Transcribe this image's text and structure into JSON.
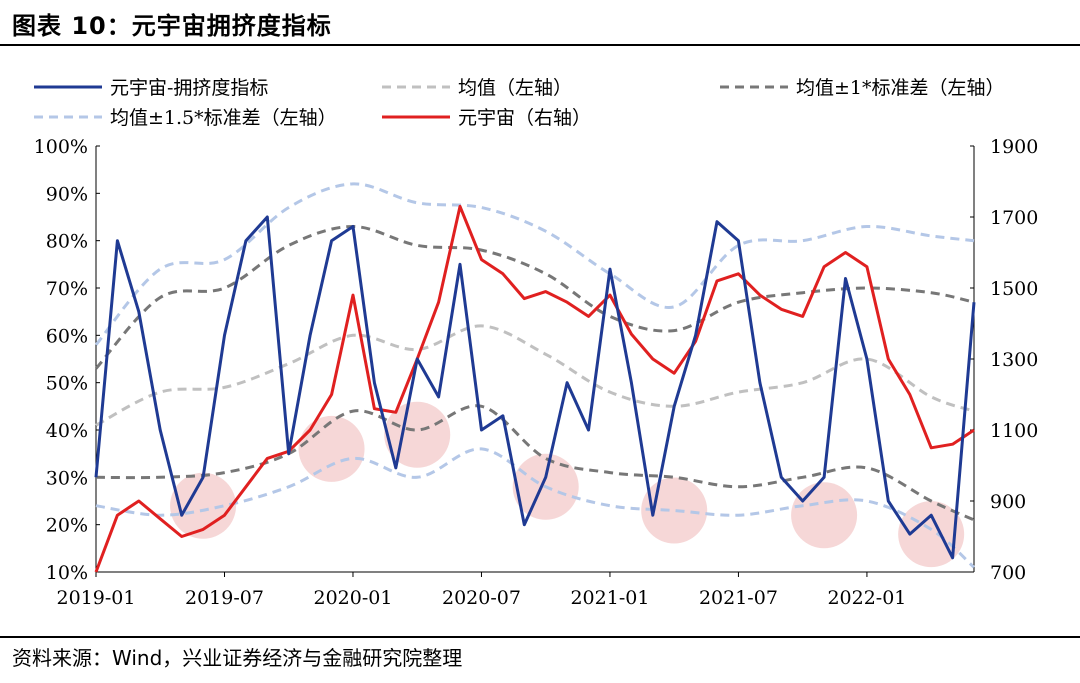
{
  "title": "图表 10：元宇宙拥挤度指标",
  "source": "资料来源：Wind，兴业证券经济与金融研究院整理",
  "chart_data": {
    "type": "line",
    "title": "",
    "xlabel": "",
    "ylabel_left": "",
    "ylabel_right": "",
    "x_ticks": [
      "2019-01",
      "2019-07",
      "2020-01",
      "2020-07",
      "2021-01",
      "2021-07",
      "2022-01"
    ],
    "x_range": [
      "2019-01",
      "2022-06"
    ],
    "y_left_ticks": [
      "10%",
      "20%",
      "30%",
      "40%",
      "50%",
      "60%",
      "70%",
      "80%",
      "90%",
      "100%"
    ],
    "y_left_range": [
      10,
      100
    ],
    "y_right_ticks": [
      "700",
      "900",
      "1100",
      "1300",
      "1500",
      "1700",
      "1900"
    ],
    "y_right_range": [
      700,
      1900
    ],
    "legend_placement": "top",
    "series": [
      {
        "name": "元宇宙-拥挤度指标",
        "axis": "left",
        "color": "#1f3a93",
        "style": "solid",
        "x": [
          "2019-01",
          "2019-02",
          "2019-03",
          "2019-04",
          "2019-05",
          "2019-06",
          "2019-07",
          "2019-08",
          "2019-09",
          "2019-10",
          "2019-11",
          "2019-12",
          "2020-01",
          "2020-02",
          "2020-03",
          "2020-04",
          "2020-05",
          "2020-06",
          "2020-07",
          "2020-08",
          "2020-09",
          "2020-10",
          "2020-11",
          "2020-12",
          "2021-01",
          "2021-02",
          "2021-03",
          "2021-04",
          "2021-05",
          "2021-06",
          "2021-07",
          "2021-08",
          "2021-09",
          "2021-10",
          "2021-11",
          "2021-12",
          "2022-01",
          "2022-02",
          "2022-03",
          "2022-04",
          "2022-05",
          "2022-06"
        ],
        "values": [
          30,
          80,
          65,
          40,
          22,
          30,
          60,
          80,
          85,
          35,
          60,
          80,
          83,
          50,
          32,
          55,
          47,
          75,
          40,
          43,
          20,
          30,
          50,
          40,
          74,
          50,
          22,
          45,
          60,
          84,
          80,
          50,
          30,
          25,
          30,
          72,
          55,
          25,
          18,
          22,
          13,
          67
        ]
      },
      {
        "name": "均值（左轴）",
        "axis": "left",
        "color": "#c0c0c0",
        "style": "dashed",
        "x": [
          "2019-01",
          "2019-04",
          "2019-07",
          "2019-10",
          "2020-01",
          "2020-04",
          "2020-07",
          "2020-10",
          "2021-01",
          "2021-04",
          "2021-07",
          "2021-10",
          "2022-01",
          "2022-04",
          "2022-06"
        ],
        "values": [
          41,
          48,
          49,
          54,
          60,
          57,
          62,
          56,
          48,
          45,
          48,
          50,
          55,
          47,
          44
        ]
      },
      {
        "name": "均值±1*标准差（左轴）",
        "axis": "left",
        "color": "#777777",
        "style": "dashed",
        "x": [
          "2019-01",
          "2019-04",
          "2019-07",
          "2019-10",
          "2020-01",
          "2020-04",
          "2020-07",
          "2020-10",
          "2021-01",
          "2021-04",
          "2021-07",
          "2021-10",
          "2022-01",
          "2022-04",
          "2022-06"
        ],
        "values": [
          53,
          68,
          70,
          79,
          83,
          79,
          78,
          73,
          64,
          61,
          67,
          69,
          70,
          69,
          67
        ],
        "lower": [
          30,
          30,
          31,
          35,
          44,
          40,
          45,
          34,
          31,
          30,
          28,
          30,
          32,
          25,
          21
        ]
      },
      {
        "name": "均值±1.5*标准差（左轴）",
        "axis": "left",
        "color": "#b4c7e7",
        "style": "dashed",
        "x": [
          "2019-01",
          "2019-04",
          "2019-07",
          "2019-10",
          "2020-01",
          "2020-04",
          "2020-07",
          "2020-10",
          "2021-01",
          "2021-04",
          "2021-07",
          "2021-10",
          "2022-01",
          "2022-04",
          "2022-06"
        ],
        "values": [
          58,
          74,
          76,
          87,
          92,
          88,
          87,
          82,
          73,
          66,
          79,
          80,
          83,
          81,
          80
        ],
        "lower": [
          24,
          22,
          24,
          28,
          34,
          30,
          36,
          28,
          24,
          23,
          22,
          24,
          25,
          19,
          11
        ]
      },
      {
        "name": "元宇宙（右轴）",
        "axis": "right",
        "color": "#e02020",
        "style": "solid",
        "x": [
          "2019-01",
          "2019-02",
          "2019-03",
          "2019-04",
          "2019-05",
          "2019-06",
          "2019-07",
          "2019-08",
          "2019-09",
          "2019-10",
          "2019-11",
          "2019-12",
          "2020-01",
          "2020-02",
          "2020-03",
          "2020-04",
          "2020-05",
          "2020-06",
          "2020-07",
          "2020-08",
          "2020-09",
          "2020-10",
          "2020-11",
          "2020-12",
          "2021-01",
          "2021-02",
          "2021-03",
          "2021-04",
          "2021-05",
          "2021-06",
          "2021-07",
          "2021-08",
          "2021-09",
          "2021-10",
          "2021-11",
          "2021-12",
          "2022-01",
          "2022-02",
          "2022-03",
          "2022-04",
          "2022-05",
          "2022-06"
        ],
        "values": [
          700,
          860,
          900,
          850,
          800,
          820,
          860,
          940,
          1020,
          1040,
          1100,
          1200,
          1480,
          1160,
          1150,
          1300,
          1460,
          1730,
          1580,
          1540,
          1470,
          1490,
          1460,
          1420,
          1480,
          1370,
          1300,
          1260,
          1350,
          1520,
          1540,
          1480,
          1440,
          1420,
          1560,
          1600,
          1560,
          1300,
          1200,
          1050,
          1060,
          1100
        ]
      }
    ],
    "highlights": [
      {
        "label": "",
        "x": "2019-06",
        "y": 24
      },
      {
        "label": "",
        "x": "2019-12",
        "y": 36
      },
      {
        "label": "",
        "x": "2020-04",
        "y": 39
      },
      {
        "label": "",
        "x": "2020-10",
        "y": 28
      },
      {
        "label": "",
        "x": "2021-04",
        "y": 23
      },
      {
        "label": "",
        "x": "2021-11",
        "y": 22
      },
      {
        "label": "",
        "x": "2022-04",
        "y": 18
      }
    ]
  }
}
